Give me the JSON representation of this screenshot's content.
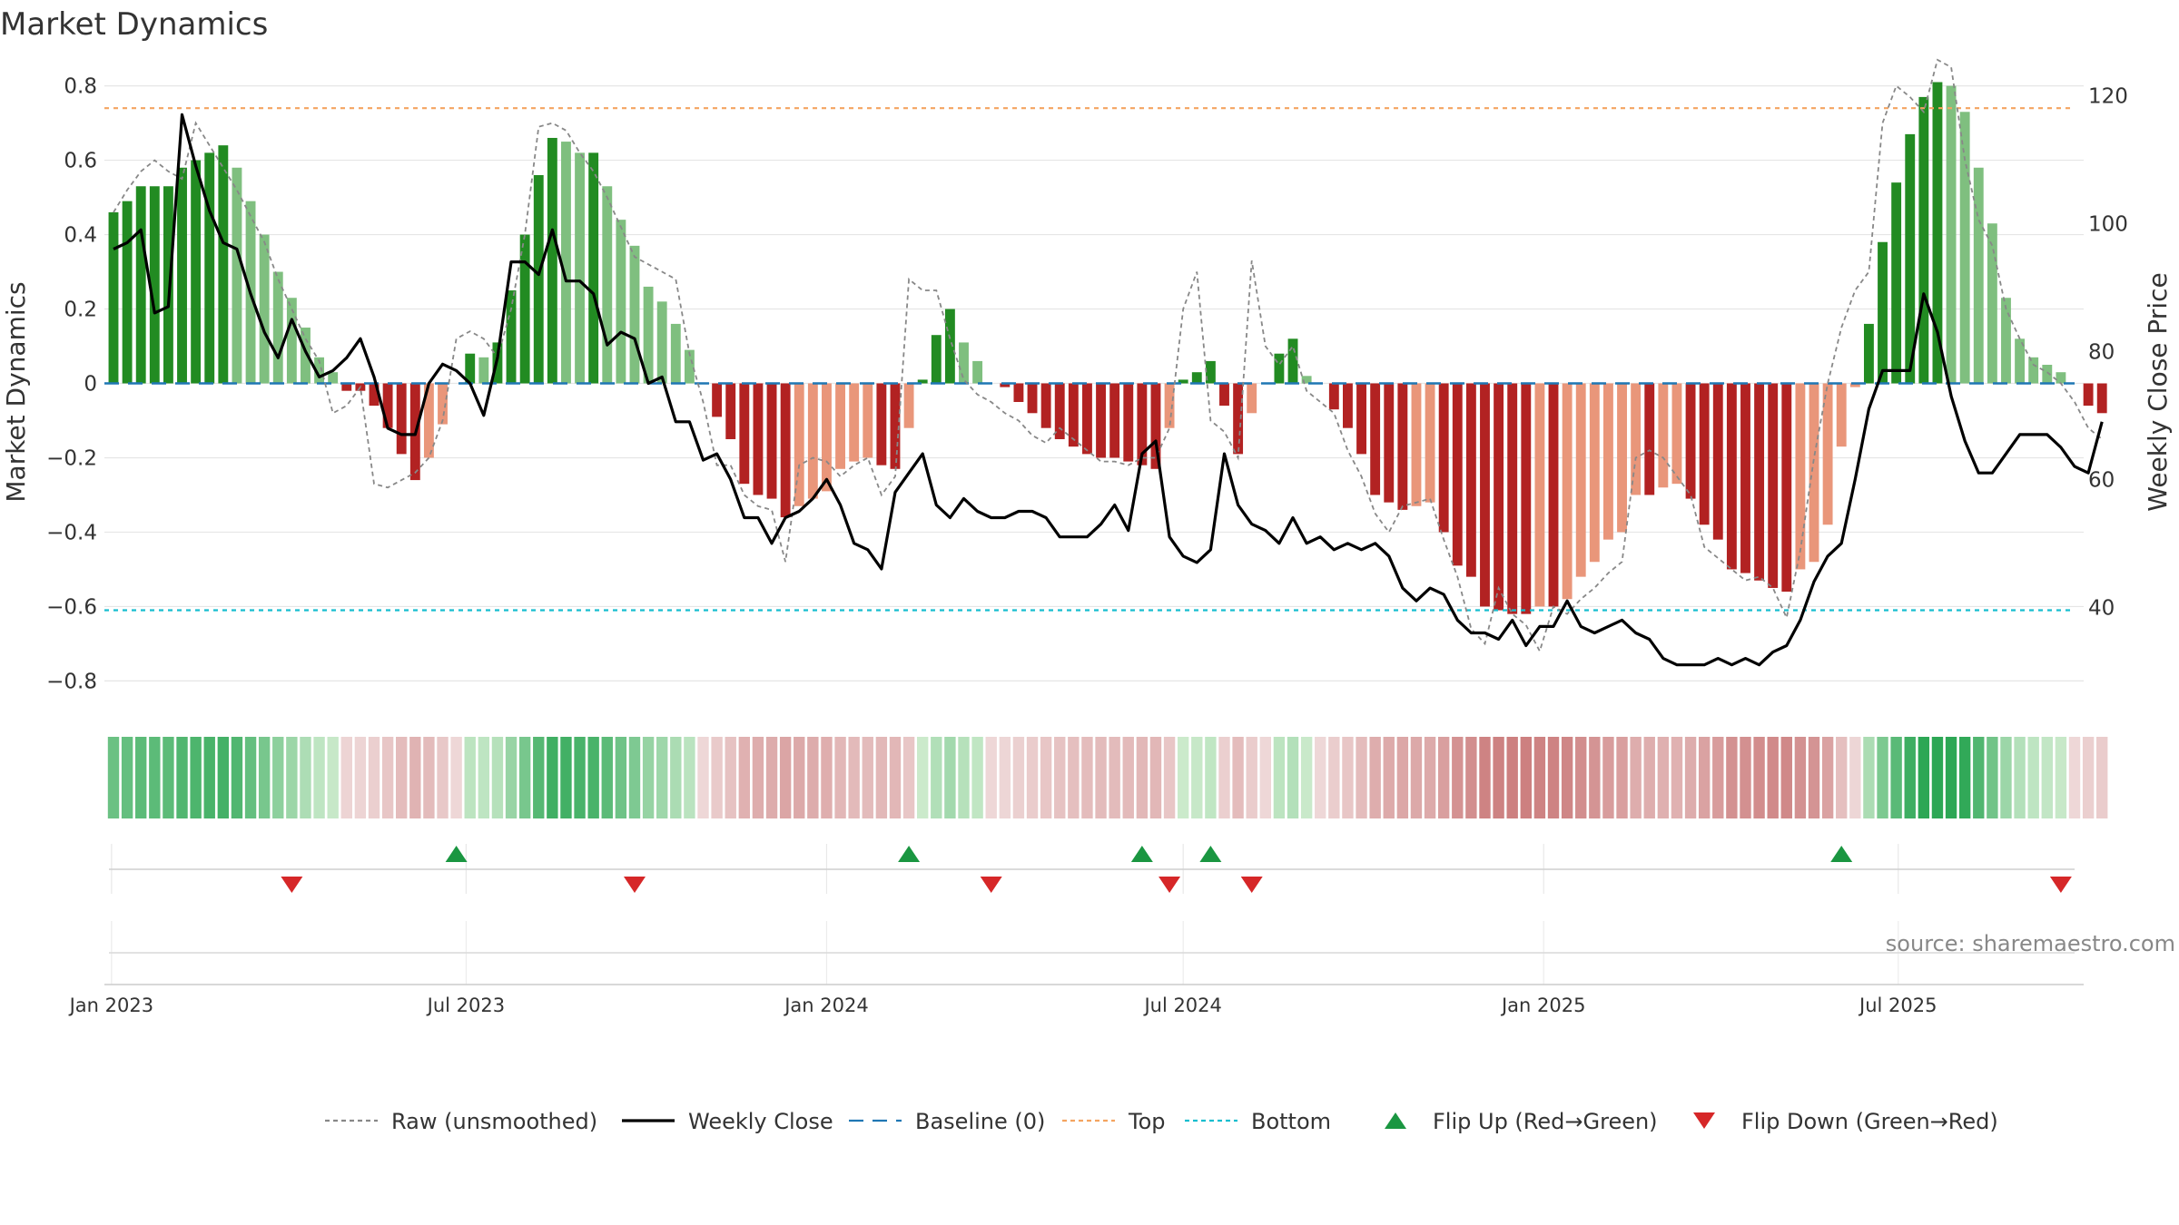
{
  "chart_data": {
    "type": "bar",
    "title": "Market Dynamics",
    "ylabel": "Market Dynamics",
    "y2label": "Weekly Close Price",
    "ylim": [
      -0.86,
      0.86
    ],
    "y2lim": [
      25,
      125
    ],
    "yticks": [
      0.8,
      0.6,
      0.4,
      0.2,
      0,
      -0.2,
      -0.4,
      -0.6,
      -0.8
    ],
    "ytick_labels": [
      "0.8",
      "0.6",
      "0.4",
      "0.2",
      "0",
      "−0.2",
      "−0.4",
      "−0.6",
      "−0.8"
    ],
    "y2ticks": [
      120,
      100,
      80,
      60,
      40
    ],
    "y2tick_labels": [
      "120",
      "100",
      "80",
      "60",
      "40"
    ],
    "x_start": "2023-01-02",
    "x_end": "2025-09-29",
    "xticks": [
      "2023-01-01",
      "2023-07-01",
      "2024-01-01",
      "2024-07-01",
      "2025-01-01",
      "2025-07-01"
    ],
    "xtick_labels": [
      "Jan 2023",
      "Jul 2023",
      "Jan 2024",
      "Jul 2024",
      "Jan 2025",
      "Jul 2025"
    ],
    "top_line": 0.74,
    "bottom_line": -0.61,
    "baseline": 0,
    "grid": true,
    "legend_position": "bottom",
    "colors": {
      "strong_green": "#228B22",
      "light_green": "#7FBF7F",
      "strong_red": "#B22222",
      "light_red": "#E9967A",
      "raw": "#888888",
      "close": "#000000",
      "baseline": "#1F77B4",
      "top": "#F4A460",
      "bottom": "#17BECF",
      "flip_up": "#1A9641",
      "flip_down": "#D62728"
    },
    "bars": [
      0.46,
      0.49,
      0.53,
      0.53,
      0.53,
      0.58,
      0.6,
      0.62,
      0.64,
      0.58,
      0.49,
      0.4,
      0.3,
      0.23,
      0.15,
      0.07,
      0.03,
      -0.02,
      -0.02,
      -0.06,
      -0.12,
      -0.19,
      -0.26,
      -0.2,
      -0.11,
      0.0,
      0.08,
      0.07,
      0.11,
      0.25,
      0.4,
      0.56,
      0.66,
      0.65,
      0.62,
      0.62,
      0.53,
      0.44,
      0.37,
      0.26,
      0.22,
      0.16,
      0.09,
      0.0,
      -0.09,
      -0.15,
      -0.27,
      -0.3,
      -0.31,
      -0.36,
      -0.33,
      -0.31,
      -0.29,
      -0.23,
      -0.21,
      -0.2,
      -0.22,
      -0.23,
      -0.12,
      0.01,
      0.13,
      0.2,
      0.11,
      0.06,
      0.0,
      -0.01,
      -0.05,
      -0.08,
      -0.12,
      -0.15,
      -0.17,
      -0.19,
      -0.2,
      -0.2,
      -0.21,
      -0.22,
      -0.23,
      -0.12,
      0.01,
      0.03,
      0.06,
      -0.06,
      -0.19,
      -0.08,
      0.0,
      0.08,
      0.12,
      0.02,
      0.0,
      -0.07,
      -0.12,
      -0.19,
      -0.3,
      -0.32,
      -0.34,
      -0.33,
      -0.32,
      -0.4,
      -0.49,
      -0.52,
      -0.6,
      -0.61,
      -0.62,
      -0.62,
      -0.6,
      -0.6,
      -0.58,
      -0.52,
      -0.48,
      -0.42,
      -0.4,
      -0.3,
      -0.3,
      -0.28,
      -0.27,
      -0.31,
      -0.38,
      -0.42,
      -0.5,
      -0.51,
      -0.53,
      -0.55,
      -0.56,
      -0.5,
      -0.48,
      -0.38,
      -0.17,
      -0.01,
      0.16,
      0.38,
      0.54,
      0.67,
      0.77,
      0.81,
      0.8,
      0.73,
      0.58,
      0.43,
      0.23,
      0.12,
      0.07,
      0.05,
      0.03,
      0.0,
      -0.06,
      -0.08
    ],
    "close": [
      96,
      97,
      99,
      86,
      87,
      117,
      109,
      102,
      97,
      96,
      89,
      83,
      79,
      85,
      80,
      76,
      77,
      79,
      82,
      76,
      68,
      67,
      67,
      75,
      78,
      77,
      75,
      70,
      79,
      94,
      94,
      92,
      99,
      91,
      91,
      89,
      81,
      83,
      82,
      75,
      76,
      69,
      69,
      63,
      64,
      60,
      54,
      54,
      50,
      54,
      55,
      57,
      60,
      56,
      50,
      49,
      46,
      58,
      61,
      64,
      56,
      54,
      57,
      55,
      54,
      54,
      55,
      55,
      54,
      51,
      51,
      51,
      53,
      56,
      52,
      64,
      66,
      51,
      48,
      47,
      49,
      64,
      56,
      53,
      52,
      50,
      54,
      50,
      51,
      49,
      50,
      49,
      50,
      48,
      43,
      41,
      43,
      42,
      38,
      36,
      36,
      35,
      38,
      34,
      37,
      37,
      41,
      37,
      36,
      37,
      38,
      36,
      35,
      32,
      31,
      31,
      31,
      32,
      31,
      32,
      31,
      33,
      34,
      38,
      44,
      48,
      50,
      60,
      71,
      77,
      77,
      77,
      89,
      83,
      73,
      66,
      61,
      61,
      64,
      67,
      67,
      67,
      65,
      62,
      61,
      69
    ],
    "raw": [
      0.46,
      0.52,
      0.57,
      0.6,
      0.57,
      0.55,
      0.7,
      0.64,
      0.58,
      0.52,
      0.45,
      0.38,
      0.28,
      0.2,
      0.12,
      0.06,
      -0.08,
      -0.06,
      -0.01,
      -0.27,
      -0.28,
      -0.26,
      -0.24,
      -0.2,
      -0.1,
      0.12,
      0.14,
      0.12,
      0.07,
      0.2,
      0.4,
      0.69,
      0.7,
      0.68,
      0.62,
      0.57,
      0.5,
      0.42,
      0.34,
      0.32,
      0.3,
      0.28,
      0.08,
      -0.05,
      -0.22,
      -0.22,
      -0.3,
      -0.33,
      -0.34,
      -0.48,
      -0.22,
      -0.2,
      -0.21,
      -0.25,
      -0.22,
      -0.2,
      -0.3,
      -0.25,
      0.28,
      0.25,
      0.25,
      0.12,
      0.01,
      -0.03,
      -0.05,
      -0.08,
      -0.1,
      -0.14,
      -0.16,
      -0.12,
      -0.15,
      -0.18,
      -0.21,
      -0.21,
      -0.22,
      -0.2,
      -0.2,
      -0.12,
      0.2,
      0.3,
      -0.1,
      -0.13,
      -0.2,
      0.33,
      0.1,
      0.05,
      0.1,
      -0.02,
      -0.05,
      -0.08,
      -0.18,
      -0.25,
      -0.35,
      -0.4,
      -0.33,
      -0.32,
      -0.31,
      -0.42,
      -0.52,
      -0.66,
      -0.7,
      -0.55,
      -0.62,
      -0.65,
      -0.72,
      -0.6,
      -0.62,
      -0.58,
      -0.55,
      -0.51,
      -0.48,
      -0.2,
      -0.18,
      -0.2,
      -0.25,
      -0.3,
      -0.44,
      -0.47,
      -0.5,
      -0.53,
      -0.52,
      -0.55,
      -0.63,
      -0.45,
      -0.2,
      0.0,
      0.15,
      0.25,
      0.3,
      0.7,
      0.8,
      0.77,
      0.73,
      0.87,
      0.85,
      0.6,
      0.44,
      0.37,
      0.2,
      0.12,
      0.05,
      0.03,
      0.0,
      -0.05,
      -0.12,
      -0.15
    ]
  },
  "ribbon": {
    "strength": [
      0.46,
      0.49,
      0.53,
      0.53,
      0.53,
      0.58,
      0.6,
      0.62,
      0.64,
      0.58,
      0.49,
      0.4,
      0.3,
      0.23,
      0.15,
      0.07,
      0.03,
      -0.02,
      -0.02,
      -0.06,
      -0.12,
      -0.19,
      -0.26,
      -0.2,
      -0.11,
      0.0,
      0.08,
      0.07,
      0.11,
      0.25,
      0.4,
      0.56,
      0.66,
      0.65,
      0.62,
      0.62,
      0.53,
      0.44,
      0.37,
      0.26,
      0.22,
      0.16,
      0.09,
      0.0,
      -0.09,
      -0.15,
      -0.27,
      -0.3,
      -0.31,
      -0.36,
      -0.33,
      -0.31,
      -0.29,
      -0.23,
      -0.21,
      -0.2,
      -0.22,
      -0.23,
      -0.12,
      0.01,
      0.13,
      0.2,
      0.11,
      0.06,
      0.0,
      -0.01,
      -0.05,
      -0.08,
      -0.12,
      -0.15,
      -0.17,
      -0.19,
      -0.2,
      -0.2,
      -0.21,
      -0.22,
      -0.23,
      -0.12,
      0.01,
      0.03,
      0.06,
      -0.06,
      -0.19,
      -0.08,
      0.0,
      0.08,
      0.12,
      0.02,
      0.0,
      -0.07,
      -0.12,
      -0.19,
      -0.3,
      -0.32,
      -0.34,
      -0.33,
      -0.32,
      -0.4,
      -0.49,
      -0.52,
      -0.6,
      -0.61,
      -0.62,
      -0.62,
      -0.6,
      -0.6,
      -0.58,
      -0.52,
      -0.48,
      -0.42,
      -0.4,
      -0.3,
      -0.3,
      -0.28,
      -0.27,
      -0.31,
      -0.38,
      -0.42,
      -0.5,
      -0.51,
      -0.53,
      -0.55,
      -0.56,
      -0.5,
      -0.48,
      -0.38,
      -0.17,
      -0.01,
      0.16,
      0.38,
      0.54,
      0.67,
      0.77,
      0.81,
      0.8,
      0.73,
      0.58,
      0.43,
      0.23,
      0.12,
      0.07,
      0.05,
      0.03,
      0.0,
      -0.06,
      -0.08
    ]
  },
  "flips": {
    "up": [
      "2023-06-26",
      "2024-02-12",
      "2024-06-10",
      "2024-07-15",
      "2025-06-02"
    ],
    "down": [
      "2023-04-03",
      "2023-09-25",
      "2024-03-25",
      "2024-06-24",
      "2024-08-05",
      "2025-09-22"
    ]
  },
  "legend": [
    {
      "key": "raw",
      "label": "Raw (unsmoothed)",
      "style": "dotted",
      "color": "#888888"
    },
    {
      "key": "close",
      "label": "Weekly Close",
      "style": "solid",
      "color": "#000000"
    },
    {
      "key": "baseline",
      "label": "Baseline (0)",
      "style": "dashed",
      "color": "#1F77B4"
    },
    {
      "key": "top",
      "label": "Top",
      "style": "dotted",
      "color": "#F4A460"
    },
    {
      "key": "bottom",
      "label": "Bottom",
      "style": "dotted",
      "color": "#17BECF"
    },
    {
      "key": "flip_up",
      "label": "Flip Up (Red→Green)",
      "style": "triangle-up",
      "color": "#1A9641"
    },
    {
      "key": "flip_down",
      "label": "Flip Down (Green→Red)",
      "style": "triangle-down",
      "color": "#D62728"
    }
  ],
  "source": "source: sharemaestro.com"
}
